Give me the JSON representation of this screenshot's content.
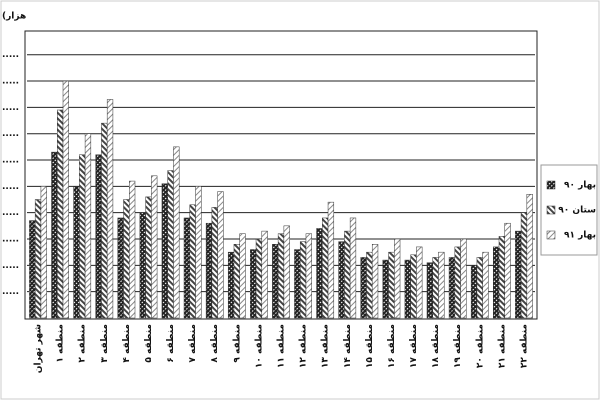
{
  "chart_data": {
    "type": "bar",
    "y_label": "(هزار",
    "categories": [
      "شهر تهران",
      "منطقه ۱",
      "منطقه ۲",
      "منطقه ۳",
      "منطقه ۴",
      "منطقه ۵",
      "منطقه ۶",
      "منطقه ۷",
      "منطقه ۸",
      "منطقه ۹",
      "منطقه ۱۰",
      "منطقه ۱۱",
      "منطقه ۱۲",
      "منطقه ۱۳",
      "منطقه ۱۴",
      "منطقه ۱۵",
      "منطقه ۱۶",
      "منطقه ۱۷",
      "منطقه ۱۸",
      "منطقه ۱۹",
      "منطقه ۲۰",
      "منطقه ۲۱",
      "منطقه ۲۲"
    ],
    "series": [
      {
        "name": "بهار ۹۰",
        "color": "#222222",
        "values": [
          3.7,
          6.3,
          5.0,
          6.2,
          3.8,
          4.0,
          5.1,
          3.8,
          3.6,
          2.5,
          2.6,
          2.8,
          2.6,
          3.4,
          2.9,
          2.3,
          2.2,
          2.2,
          2.1,
          2.3,
          2.0,
          2.7,
          3.3
        ]
      },
      {
        "name": "ستان ۹۰",
        "color": "#444444",
        "values": [
          4.5,
          7.9,
          6.2,
          7.4,
          4.5,
          4.6,
          5.6,
          4.3,
          4.2,
          2.8,
          3.0,
          3.2,
          2.9,
          3.8,
          3.3,
          2.5,
          2.5,
          2.4,
          2.3,
          2.7,
          2.3,
          3.1,
          4.0
        ]
      },
      {
        "name": "بهار ۹۱",
        "color": "#888888",
        "values": [
          5.0,
          9.0,
          7.0,
          8.3,
          5.2,
          5.4,
          6.5,
          5.0,
          4.8,
          3.2,
          3.3,
          3.5,
          3.2,
          4.4,
          3.8,
          2.8,
          3.0,
          2.7,
          2.5,
          3.0,
          2.5,
          3.6,
          4.7
        ]
      }
    ],
    "ylim": [
      0,
      10.9
    ],
    "yticks": [
      {
        "value": 1,
        "label": "....."
      },
      {
        "value": 2,
        "label": "....."
      },
      {
        "value": 3,
        "label": "....."
      },
      {
        "value": 4,
        "label": "....."
      },
      {
        "value": 5,
        "label": "....."
      },
      {
        "value": 6,
        "label": "....."
      },
      {
        "value": 7,
        "label": "....."
      },
      {
        "value": 8,
        "label": "....."
      },
      {
        "value": 9,
        "label": "....."
      },
      {
        "value": 10,
        "label": "....."
      }
    ],
    "grid": true
  }
}
